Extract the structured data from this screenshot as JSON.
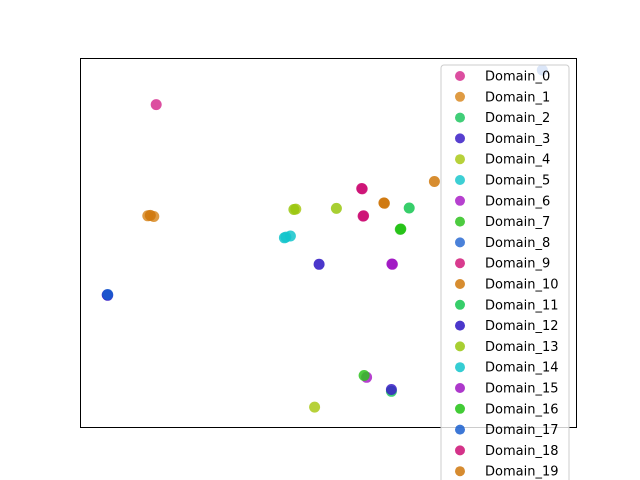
{
  "chart_data": {
    "type": "scatter",
    "title": "",
    "xlabel": "",
    "ylabel": "",
    "ticks_visible": false,
    "grid": false,
    "legend_placement": "upper-right",
    "xlim": [
      0,
      1
    ],
    "ylim": [
      0,
      1
    ],
    "series": [
      {
        "name": "Domain_0",
        "color": "#d62f8f",
        "points": [
          [
            0.152,
            0.876
          ]
        ]
      },
      {
        "name": "Domain_1",
        "color": "#d98a22",
        "points": [
          [
            0.135,
            0.574
          ],
          [
            0.147,
            0.572
          ]
        ]
      },
      {
        "name": "Domain_2",
        "color": "#20c660",
        "points": [
          [
            0.627,
            0.097
          ]
        ]
      },
      {
        "name": "Domain_3",
        "color": "#3a1dc7",
        "points": [
          [
            0.054,
            0.358
          ],
          [
            0.627,
            0.102
          ]
        ]
      },
      {
        "name": "Domain_4",
        "color": "#aac917",
        "points": [
          [
            0.472,
            0.054
          ],
          [
            0.434,
            0.592
          ]
        ]
      },
      {
        "name": "Domain_5",
        "color": "#1bc7cc",
        "points": [
          [
            0.414,
            0.516
          ]
        ]
      },
      {
        "name": "Domain_6",
        "color": "#a91fc7",
        "points": [
          [
            0.577,
            0.135
          ],
          [
            0.629,
            0.442
          ]
        ]
      },
      {
        "name": "Domain_7",
        "color": "#2ec21e",
        "points": [
          [
            0.645,
            0.537
          ],
          [
            0.572,
            0.14
          ]
        ]
      },
      {
        "name": "Domain_8",
        "color": "#2a6bd2",
        "points": [
          [
            0.932,
            0.97
          ]
        ]
      },
      {
        "name": "Domain_9",
        "color": "#d1197a",
        "points": [
          [
            0.568,
            0.647
          ],
          [
            0.571,
            0.574
          ]
        ]
      },
      {
        "name": "Domain_10",
        "color": "#d0790c",
        "points": [
          [
            0.613,
            0.608
          ],
          [
            0.714,
            0.667
          ]
        ]
      },
      {
        "name": "Domain_11",
        "color": "#14c550",
        "points": [
          [
            0.663,
            0.595
          ]
        ]
      },
      {
        "name": "Domain_12",
        "color": "#2c14c2",
        "points": [
          [
            0.481,
            0.442
          ],
          [
            0.053,
            0.359
          ]
        ]
      },
      {
        "name": "Domain_13",
        "color": "#99c70e",
        "points": [
          [
            0.516,
            0.594
          ],
          [
            0.43,
            0.591
          ]
        ]
      },
      {
        "name": "Domain_14",
        "color": "#12c4cb",
        "points": [
          [
            0.411,
            0.514
          ],
          [
            0.423,
            0.519
          ]
        ]
      },
      {
        "name": "Domain_15",
        "color": "#9f15c2",
        "points": [
          [
            0.628,
            0.443
          ]
        ]
      },
      {
        "name": "Domain_16",
        "color": "#21c213",
        "points": [
          [
            0.646,
            0.538
          ]
        ]
      },
      {
        "name": "Domain_17",
        "color": "#1a5fcf",
        "points": [
          [
            0.054,
            0.36
          ]
        ]
      },
      {
        "name": "Domain_18",
        "color": "#cc0f74",
        "points": [
          [
            0.567,
            0.648
          ],
          [
            0.57,
            0.573
          ]
        ]
      },
      {
        "name": "Domain_19",
        "color": "#cf770c",
        "points": [
          [
            0.612,
            0.609
          ],
          [
            0.14,
            0.575
          ]
        ]
      }
    ]
  }
}
